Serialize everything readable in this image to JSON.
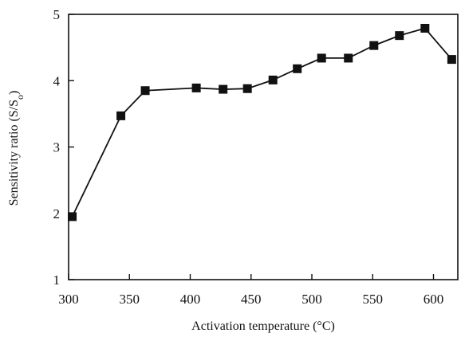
{
  "chart_data": {
    "type": "line",
    "title": "",
    "xlabel": "Activation temperature (°C)",
    "ylabel": "Sensitivity ratio (S/So)",
    "ylabel_parts": {
      "main": "Sensitivity ratio (S/S",
      "subscript": "o",
      "close": ")"
    },
    "xlim": [
      300,
      620
    ],
    "ylim": [
      1,
      5
    ],
    "x_ticks": [
      300,
      350,
      400,
      450,
      500,
      550,
      600
    ],
    "y_ticks": [
      1,
      2,
      3,
      4,
      5
    ],
    "grid": false,
    "marker": "square",
    "line_color": "#111111",
    "marker_color": "#111111",
    "series": [
      {
        "x": [
          303,
          343,
          363,
          405,
          427,
          447,
          468,
          488,
          508,
          530,
          551,
          572,
          593,
          615
        ],
        "y": [
          1.95,
          3.47,
          3.85,
          3.89,
          3.87,
          3.88,
          4.01,
          4.18,
          4.34,
          4.34,
          4.53,
          4.68,
          4.79,
          4.32
        ]
      }
    ]
  }
}
